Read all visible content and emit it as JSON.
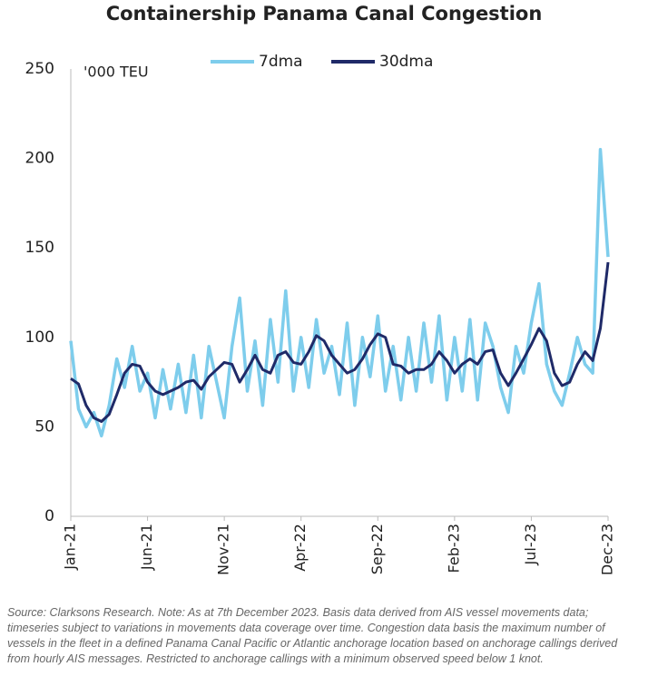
{
  "chart_data": {
    "type": "line",
    "title": "Containership Panama Canal Congestion",
    "y_label": "'000 TEU",
    "note": "Source: Clarksons Research. Note: As at 7th December 2023. Basis data derived from AIS vessel movements data; timeseries subject to variations in movements data coverage over time. Congestion data basis the maximum number of vessels in the fleet in a defined Panama Canal Pacific or Atlantic anchorage location based on anchorage callings derived from hourly AIS messages. Restricted to anchorage callings with a minimum observed speed below 1 knot.",
    "categories": [
      "Jan-21",
      null,
      null,
      null,
      null,
      null,
      null,
      null,
      null,
      null,
      "Jun-21",
      null,
      null,
      null,
      null,
      null,
      null,
      null,
      null,
      null,
      "Nov-21",
      null,
      null,
      null,
      null,
      null,
      null,
      null,
      null,
      null,
      "Apr-22",
      null,
      null,
      null,
      null,
      null,
      null,
      null,
      null,
      null,
      "Sep-22",
      null,
      null,
      null,
      null,
      null,
      null,
      null,
      null,
      null,
      "Feb-23",
      null,
      null,
      null,
      null,
      null,
      null,
      null,
      null,
      null,
      "Jul-23",
      null,
      null,
      null,
      null,
      null,
      null,
      null,
      null,
      null,
      "Dec-23"
    ],
    "series": [
      {
        "name": "7dma",
        "color": "#7ecdec",
        "values": [
          98,
          60,
          50,
          58,
          45,
          62,
          88,
          72,
          95,
          70,
          80,
          55,
          82,
          60,
          85,
          58,
          90,
          55,
          95,
          75,
          55,
          95,
          122,
          70,
          98,
          62,
          110,
          75,
          126,
          70,
          100,
          72,
          110,
          80,
          95,
          68,
          108,
          62,
          100,
          78,
          112,
          70,
          95,
          65,
          100,
          70,
          108,
          75,
          112,
          65,
          100,
          70,
          110,
          65,
          108,
          95,
          72,
          58,
          95,
          80,
          108,
          130,
          85,
          70,
          62,
          80,
          100,
          85,
          80,
          205,
          145
        ]
      },
      {
        "name": "30dma",
        "color": "#1f2a68",
        "values": [
          77,
          74,
          62,
          55,
          53,
          57,
          68,
          80,
          85,
          84,
          75,
          70,
          68,
          70,
          72,
          75,
          76,
          71,
          78,
          82,
          86,
          85,
          75,
          82,
          90,
          82,
          80,
          90,
          92,
          86,
          85,
          92,
          101,
          98,
          90,
          85,
          80,
          82,
          88,
          96,
          102,
          100,
          85,
          84,
          80,
          82,
          82,
          85,
          92,
          87,
          80,
          85,
          88,
          85,
          92,
          93,
          80,
          73,
          80,
          88,
          96,
          105,
          98,
          80,
          73,
          75,
          85,
          92,
          87,
          105,
          142
        ]
      }
    ],
    "ylim": [
      0,
      250
    ],
    "yticks": [
      0,
      50,
      100,
      150,
      200,
      250
    ],
    "grid": false,
    "legend": "top"
  }
}
